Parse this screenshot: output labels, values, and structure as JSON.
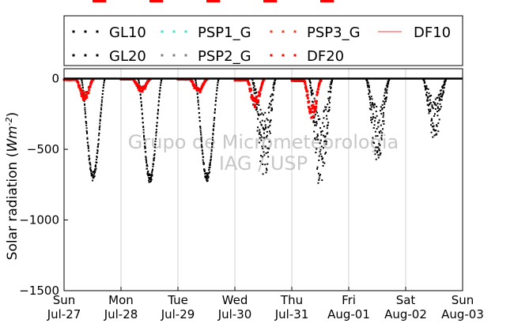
{
  "chart_data": {
    "type": "scatter",
    "watermark": [
      "Grupo de Micrometeorologia",
      "IAG / USP"
    ],
    "ylabel": "Solar radiation (Wm^-2)",
    "ylabel_parts": {
      "main": "Solar radiation (",
      "unit": "Wm",
      "exp": "-2",
      "close": ")"
    },
    "ylim": [
      -1500,
      70
    ],
    "yticks": [
      0,
      -500,
      -1000,
      -1500
    ],
    "ytick_labels": [
      "0",
      "−500",
      "−1000",
      "−1500"
    ],
    "xlim": [
      "2025-07-27",
      "2025-08-03"
    ],
    "xticks": [
      {
        "weekday": "Sun",
        "date": "Jul-27"
      },
      {
        "weekday": "Mon",
        "date": "Jul-28"
      },
      {
        "weekday": "Tue",
        "date": "Jul-29"
      },
      {
        "weekday": "Wed",
        "date": "Jul-30"
      },
      {
        "weekday": "Thu",
        "date": "Jul-31"
      },
      {
        "weekday": "Fri",
        "date": "Aug-01"
      },
      {
        "weekday": "Sat",
        "date": "Aug-02"
      },
      {
        "weekday": "Sun",
        "date": "Aug-03"
      }
    ],
    "grid": "vertical",
    "legend_position": "top",
    "series": [
      {
        "name": "GL10",
        "color": "#000000",
        "marker": "dot",
        "daily_min": [
          -710,
          -730,
          -715,
          -690,
          -750,
          -580,
          -410
        ],
        "day_profile": [
          "smooth",
          "smooth",
          "smooth",
          "noisy",
          "noisy",
          "noisy",
          "noisy"
        ]
      },
      {
        "name": "GL20",
        "color": "#000000",
        "marker": "dot",
        "daily_min": [
          -700,
          -720,
          -710,
          -680,
          -740,
          -570,
          -400
        ],
        "day_profile": [
          "smooth",
          "smooth",
          "smooth",
          "noisy",
          "noisy",
          "noisy",
          "noisy"
        ]
      },
      {
        "name": "PSP1_G",
        "color": "#40e0d0",
        "marker": "dot",
        "daily_min": []
      },
      {
        "name": "PSP2_G",
        "color": "#808080",
        "marker": "dot",
        "daily_min": []
      },
      {
        "name": "PSP3_G",
        "color": "#e8402a",
        "marker": "dot",
        "daily_min": []
      },
      {
        "name": "DF20",
        "color": "#ff0000",
        "marker": "dot",
        "daily_min": [
          -130,
          -80,
          -85,
          -170,
          -240
        ]
      },
      {
        "name": "DF10",
        "color": "#ff7f7f",
        "marker": "line",
        "daily_min": []
      }
    ]
  }
}
